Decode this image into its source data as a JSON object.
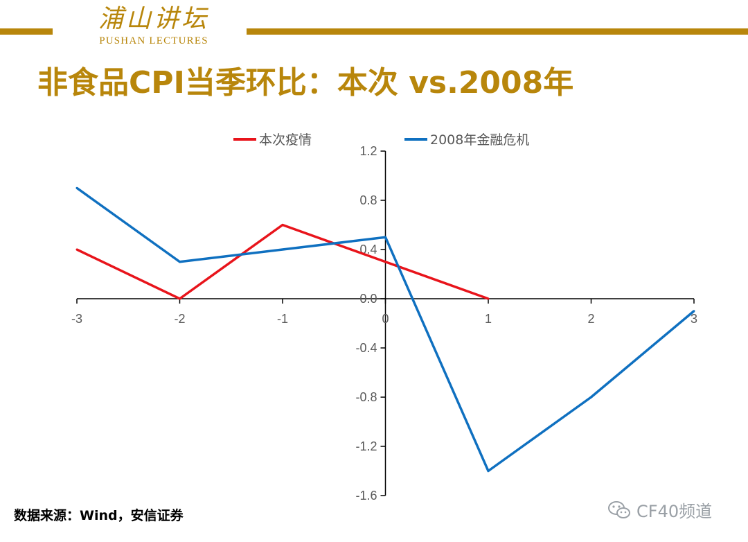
{
  "logo": {
    "chinese": "浦山讲坛",
    "english": "PUSHAN LECTURES"
  },
  "title": "非食品CPI当季环比：本次 vs.2008年",
  "source": "数据来源：Wind，安信证券",
  "watermark": "CF40频道",
  "colors": {
    "accent": "#b8860b",
    "series_current": "#e8141b",
    "series_2008": "#0f70c0"
  },
  "chart_data": {
    "type": "line",
    "title": "",
    "xlabel": "",
    "ylabel": "",
    "x": [
      -3,
      -2,
      -1,
      0,
      1,
      2,
      3
    ],
    "x_tick_labels": [
      "-3",
      "-2",
      "-1",
      "0",
      "1",
      "2",
      "3"
    ],
    "xlim": [
      -3,
      3
    ],
    "ylim": [
      -1.6,
      1.2
    ],
    "y_ticks": [
      1.2,
      0.8,
      0.4,
      0.0,
      -0.4,
      -0.8,
      -1.2,
      -1.6
    ],
    "y_tick_labels": [
      "1.2",
      "0.8",
      "0.4",
      "0.0",
      "-0.4",
      "-0.8",
      "-1.2",
      "-1.6"
    ],
    "grid": false,
    "legend_position": "top-center",
    "series": [
      {
        "name": "本次疫情",
        "color": "#e8141b",
        "points": [
          [
            -3,
            0.4
          ],
          [
            -2,
            0.0
          ],
          [
            -1,
            0.6
          ],
          [
            0,
            0.3
          ],
          [
            1,
            0.0
          ]
        ]
      },
      {
        "name": "2008年金融危机",
        "color": "#0f70c0",
        "points": [
          [
            -3,
            0.9
          ],
          [
            -2,
            0.3
          ],
          [
            -1,
            0.4
          ],
          [
            0,
            0.5
          ],
          [
            1,
            -1.4
          ],
          [
            2,
            -0.8
          ],
          [
            3,
            -0.1
          ]
        ]
      }
    ]
  }
}
